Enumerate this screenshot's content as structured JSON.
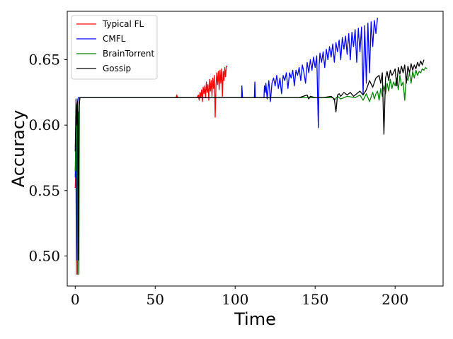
{
  "chart_data": {
    "type": "line",
    "xlabel": "Time",
    "ylabel": "Accuracy",
    "xlim": [
      -5,
      230
    ],
    "ylim": [
      0.477,
      0.687
    ],
    "xticks": [
      0,
      50,
      100,
      150,
      200
    ],
    "yticks": [
      0.5,
      0.55,
      0.6,
      0.65
    ],
    "xtick_labels": [
      "0",
      "50",
      "100",
      "150",
      "200"
    ],
    "ytick_labels": [
      "0.50",
      "0.55",
      "0.60",
      "0.65"
    ],
    "grid": false,
    "legend_position": "top-left",
    "series": [
      {
        "name": "Typical FL",
        "color": "#ff0000",
        "x": [
          0,
          0.5,
          0.7,
          1,
          1.3,
          1.6,
          2,
          3,
          10,
          30,
          60,
          63,
          63.5,
          64,
          70,
          76,
          77,
          77.5,
          78,
          78.5,
          79,
          79.5,
          80,
          80.5,
          81,
          81.5,
          82,
          82.5,
          83,
          83.5,
          84,
          84.5,
          85,
          85.5,
          86,
          86.5,
          87,
          87.5,
          88,
          88.5,
          89,
          89.5,
          90,
          90.5,
          91,
          91.5,
          92,
          92.5,
          93,
          93.5,
          94,
          94.5,
          95
        ],
        "y": [
          0.552,
          0.575,
          0.486,
          0.6,
          0.615,
          0.62,
          0.621,
          0.621,
          0.621,
          0.621,
          0.621,
          0.621,
          0.623,
          0.621,
          0.621,
          0.621,
          0.623,
          0.619,
          0.625,
          0.621,
          0.627,
          0.618,
          0.629,
          0.624,
          0.63,
          0.621,
          0.633,
          0.625,
          0.631,
          0.619,
          0.635,
          0.626,
          0.634,
          0.622,
          0.636,
          0.628,
          0.638,
          0.606,
          0.63,
          0.64,
          0.631,
          0.641,
          0.627,
          0.642,
          0.632,
          0.643,
          0.622,
          0.641,
          0.634,
          0.644,
          0.637,
          0.645,
          0.645
        ]
      },
      {
        "name": "CMFL",
        "color": "#0000ff",
        "x": [
          0,
          0.4,
          0.7,
          1.1,
          1.5,
          2,
          3,
          20,
          50,
          80,
          100,
          104,
          104.2,
          104.6,
          105,
          110,
          112,
          112.3,
          112.6,
          113,
          118,
          118.3,
          118.8,
          119.2,
          120,
          121,
          121.5,
          122,
          123,
          124,
          125,
          126,
          127,
          128,
          129,
          130,
          131,
          132,
          133,
          134,
          135,
          136,
          137,
          138,
          139,
          140,
          141,
          142,
          143,
          144,
          145,
          146,
          147,
          148,
          149,
          150,
          151,
          152,
          152.5,
          153,
          154,
          155,
          156,
          157,
          158,
          159,
          160,
          161,
          162,
          163,
          164,
          165,
          166,
          167,
          168,
          169,
          170,
          171,
          172,
          173,
          174,
          175,
          176,
          177,
          178,
          179,
          180,
          181,
          182,
          183,
          184,
          185,
          186,
          187,
          188,
          189
        ],
        "y": [
          0.56,
          0.59,
          0.497,
          0.61,
          0.618,
          0.621,
          0.621,
          0.621,
          0.621,
          0.621,
          0.621,
          0.621,
          0.63,
          0.621,
          0.621,
          0.621,
          0.621,
          0.633,
          0.621,
          0.621,
          0.621,
          0.63,
          0.625,
          0.632,
          0.62,
          0.634,
          0.628,
          0.618,
          0.632,
          0.636,
          0.63,
          0.638,
          0.628,
          0.636,
          0.624,
          0.638,
          0.634,
          0.64,
          0.628,
          0.64,
          0.636,
          0.642,
          0.63,
          0.642,
          0.638,
          0.644,
          0.634,
          0.646,
          0.64,
          0.632,
          0.648,
          0.64,
          0.65,
          0.642,
          0.652,
          0.644,
          0.653,
          0.598,
          0.646,
          0.655,
          0.648,
          0.656,
          0.644,
          0.658,
          0.65,
          0.66,
          0.652,
          0.662,
          0.648,
          0.663,
          0.656,
          0.665,
          0.65,
          0.667,
          0.658,
          0.668,
          0.654,
          0.67,
          0.65,
          0.671,
          0.66,
          0.673,
          0.648,
          0.674,
          0.656,
          0.675,
          0.624,
          0.676,
          0.632,
          0.678,
          0.64,
          0.679,
          0.66,
          0.68,
          0.67,
          0.682
        ]
      },
      {
        "name": "BrainTorrent",
        "color": "#008000",
        "x": [
          0,
          0.5,
          1,
          1.5,
          2,
          2.3,
          2.6,
          3,
          3.5,
          4,
          20,
          60,
          100,
          140,
          160,
          161,
          162,
          164,
          166,
          170,
          175,
          178,
          180,
          182,
          184,
          186,
          187,
          188,
          189,
          190,
          191,
          192,
          193,
          194,
          195,
          196,
          197,
          198,
          199,
          200,
          201,
          202,
          203,
          204,
          205,
          206,
          207,
          208,
          209,
          210,
          211,
          212,
          213,
          214,
          215,
          216,
          217,
          218,
          219,
          220
        ],
        "y": [
          0.565,
          0.6,
          0.615,
          0.486,
          0.61,
          0.486,
          0.618,
          0.621,
          0.621,
          0.621,
          0.621,
          0.621,
          0.621,
          0.621,
          0.621,
          0.621,
          0.619,
          0.622,
          0.62,
          0.622,
          0.621,
          0.623,
          0.619,
          0.624,
          0.618,
          0.625,
          0.62,
          0.624,
          0.626,
          0.619,
          0.628,
          0.622,
          0.63,
          0.624,
          0.632,
          0.626,
          0.635,
          0.628,
          0.633,
          0.63,
          0.636,
          0.627,
          0.638,
          0.63,
          0.633,
          0.619,
          0.637,
          0.634,
          0.64,
          0.632,
          0.641,
          0.636,
          0.642,
          0.638,
          0.641,
          0.64,
          0.643,
          0.642,
          0.644,
          0.643
        ]
      },
      {
        "name": "Gossip",
        "color": "#000000",
        "x": [
          0,
          0.5,
          1,
          1.5,
          2,
          2.4,
          2.8,
          3,
          3.5,
          20,
          60,
          100,
          140,
          145,
          146,
          147,
          150,
          155,
          160,
          161,
          162,
          163,
          164,
          165,
          166,
          168,
          170,
          172,
          174,
          176,
          178,
          180,
          182,
          184,
          186,
          188,
          190,
          191,
          192,
          193,
          194,
          195,
          196,
          197,
          198,
          199,
          200,
          201,
          202,
          203,
          204,
          205,
          206,
          207,
          208,
          209,
          210,
          211,
          212,
          213,
          214,
          215,
          216,
          217,
          218
        ],
        "y": [
          0.58,
          0.62,
          0.6,
          0.618,
          0.497,
          0.612,
          0.62,
          0.621,
          0.621,
          0.621,
          0.621,
          0.621,
          0.621,
          0.623,
          0.62,
          0.622,
          0.621,
          0.621,
          0.622,
          0.621,
          0.62,
          0.61,
          0.623,
          0.624,
          0.622,
          0.625,
          0.623,
          0.625,
          0.622,
          0.624,
          0.626,
          0.623,
          0.627,
          0.634,
          0.629,
          0.636,
          0.638,
          0.632,
          0.64,
          0.593,
          0.636,
          0.641,
          0.634,
          0.642,
          0.638,
          0.64,
          0.643,
          0.63,
          0.644,
          0.639,
          0.645,
          0.64,
          0.646,
          0.632,
          0.645,
          0.64,
          0.647,
          0.642,
          0.646,
          0.643,
          0.648,
          0.645,
          0.649,
          0.646,
          0.65
        ]
      }
    ]
  }
}
